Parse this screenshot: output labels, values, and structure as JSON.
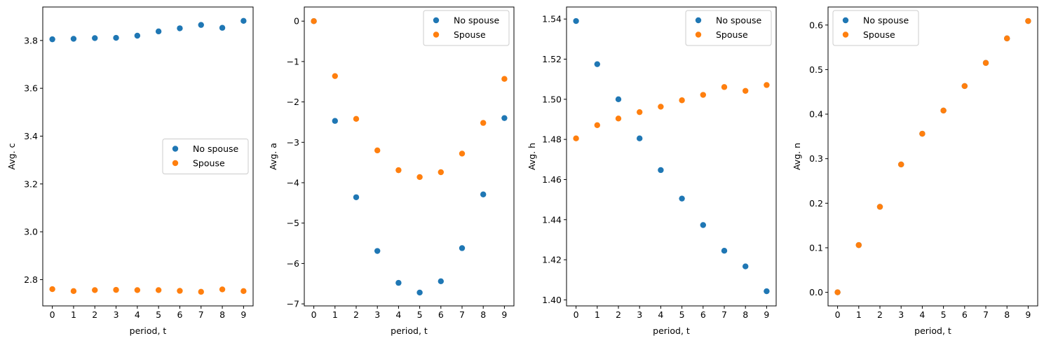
{
  "colors": {
    "no_spouse": "#1f77b4",
    "spouse": "#ff7f0e"
  },
  "chart_data": [
    {
      "type": "scatter",
      "xlabel": "period, t",
      "ylabel": "Avg. c",
      "x": [
        0,
        1,
        2,
        3,
        4,
        5,
        6,
        7,
        8,
        9
      ],
      "xlim": [
        -0.45,
        9.45
      ],
      "ylim": [
        2.69,
        3.94
      ],
      "yticks": [
        2.8,
        3.0,
        3.2,
        3.4,
        3.6,
        3.8
      ],
      "ytick_labels": [
        "2.8",
        "3.0",
        "3.2",
        "3.4",
        "3.6",
        "3.8"
      ],
      "legend_position": "center-right",
      "series": [
        {
          "name": "No spouse",
          "color": "#1f77b4",
          "values": [
            3.805,
            3.807,
            3.81,
            3.811,
            3.82,
            3.838,
            3.851,
            3.865,
            3.853,
            3.882
          ]
        },
        {
          "name": "Spouse",
          "color": "#ff7f0e",
          "values": [
            2.76,
            2.752,
            2.756,
            2.757,
            2.756,
            2.756,
            2.753,
            2.749,
            2.759,
            2.752
          ]
        }
      ]
    },
    {
      "type": "scatter",
      "xlabel": "period, t",
      "ylabel": "Avg. a",
      "x": [
        0,
        1,
        2,
        3,
        4,
        5,
        6,
        7,
        8,
        9
      ],
      "xlim": [
        -0.45,
        9.45
      ],
      "ylim": [
        -7.05,
        0.35
      ],
      "yticks": [
        -7,
        -6,
        -5,
        -4,
        -3,
        -2,
        -1,
        0
      ],
      "ytick_labels": [
        "−7",
        "−6",
        "−5",
        "−4",
        "−3",
        "−2",
        "−1",
        "0"
      ],
      "legend_position": "upper-right",
      "series": [
        {
          "name": "No spouse",
          "color": "#1f77b4",
          "values": [
            0.0,
            -2.47,
            -4.36,
            -5.69,
            -6.48,
            -6.72,
            -6.44,
            -5.62,
            -4.29,
            -2.4
          ]
        },
        {
          "name": "Spouse",
          "color": "#ff7f0e",
          "values": [
            0.0,
            -1.36,
            -2.42,
            -3.2,
            -3.69,
            -3.86,
            -3.74,
            -3.28,
            -2.52,
            -1.43
          ]
        }
      ]
    },
    {
      "type": "scatter",
      "xlabel": "period, t",
      "ylabel": "Avg. h",
      "x": [
        0,
        1,
        2,
        3,
        4,
        5,
        6,
        7,
        8,
        9
      ],
      "xlim": [
        -0.45,
        9.45
      ],
      "ylim": [
        1.397,
        1.546
      ],
      "yticks": [
        1.4,
        1.42,
        1.44,
        1.46,
        1.48,
        1.5,
        1.52,
        1.54
      ],
      "ytick_labels": [
        "1.40",
        "1.42",
        "1.44",
        "1.46",
        "1.48",
        "1.50",
        "1.52",
        "1.54"
      ],
      "legend_position": "upper-right",
      "series": [
        {
          "name": "No spouse",
          "color": "#1f77b4",
          "values": [
            1.539,
            1.5175,
            1.5,
            1.4805,
            1.4647,
            1.4505,
            1.4373,
            1.4245,
            1.4167,
            1.4043
          ]
        },
        {
          "name": "Spouse",
          "color": "#ff7f0e",
          "values": [
            1.4805,
            1.4871,
            1.4904,
            1.4936,
            1.4963,
            1.4995,
            1.5022,
            1.5061,
            1.5042,
            1.5071
          ]
        }
      ]
    },
    {
      "type": "scatter",
      "xlabel": "period, t",
      "ylabel": "Avg. n",
      "x": [
        0,
        1,
        2,
        3,
        4,
        5,
        6,
        7,
        8,
        9
      ],
      "xlim": [
        -0.45,
        9.45
      ],
      "ylim": [
        -0.0305,
        0.6405
      ],
      "yticks": [
        0.0,
        0.1,
        0.2,
        0.3,
        0.4,
        0.5,
        0.6
      ],
      "ytick_labels": [
        "0.0",
        "0.1",
        "0.2",
        "0.3",
        "0.4",
        "0.5",
        "0.6"
      ],
      "legend_position": "upper-left",
      "series": [
        {
          "name": "No spouse",
          "color": "#1f77b4",
          "values": [
            0.0,
            0.106,
            0.192,
            0.287,
            0.356,
            0.408,
            0.463,
            0.515,
            0.57,
            0.609
          ]
        },
        {
          "name": "Spouse",
          "color": "#ff7f0e",
          "values": [
            0.0,
            0.106,
            0.192,
            0.287,
            0.356,
            0.408,
            0.463,
            0.515,
            0.57,
            0.609
          ]
        }
      ]
    }
  ]
}
